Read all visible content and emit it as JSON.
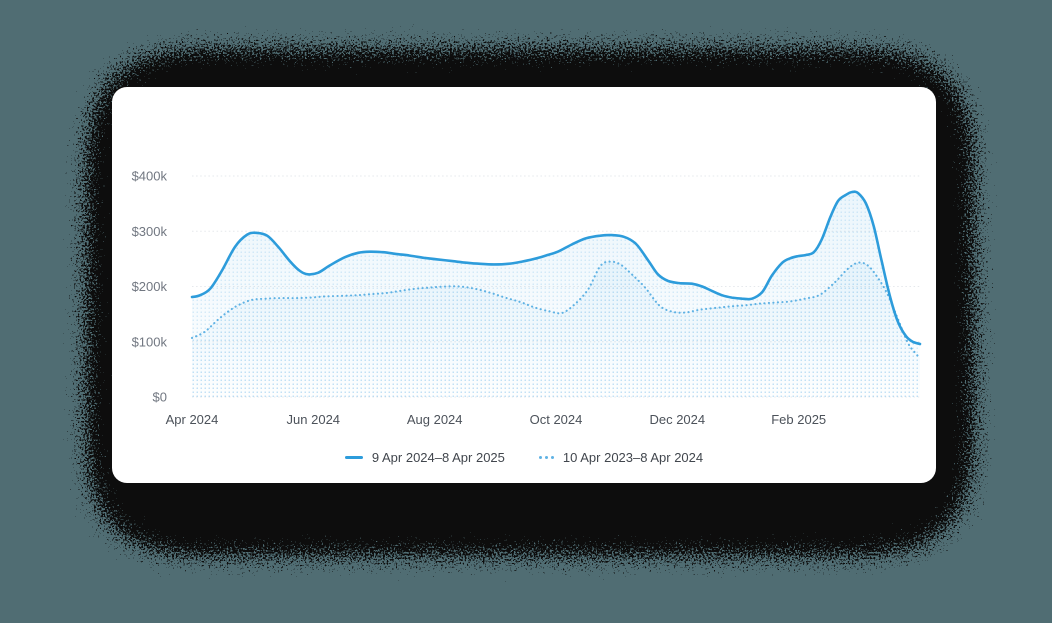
{
  "page": {
    "background_color": "#506d73",
    "shadow_color": "#0a0d0e",
    "card_color": "#ffffff"
  },
  "chart_data": {
    "type": "line",
    "title": "",
    "grid": "horizontal-dotted",
    "legend_position": "bottom-center",
    "colors": {
      "grid": "#e5e8ec",
      "y_label": "#717781",
      "x_label": "#4c525a",
      "legend_text": "#41464d",
      "area_base": "#2d9cdb",
      "stipple_dot": "#8ec7ec"
    },
    "x_axis": {
      "unit": "month",
      "range_months": [
        0,
        12
      ],
      "tick_positions_months": [
        0,
        2,
        4,
        6,
        8,
        10
      ],
      "tick_labels": [
        "Apr 2024",
        "Jun 2024",
        "Aug 2024",
        "Oct 2024",
        "Dec 2024",
        "Feb 2025"
      ]
    },
    "y_axis": {
      "unit": "USD",
      "range": [
        0,
        400
      ],
      "tick_values": [
        400,
        300,
        200,
        100,
        0
      ],
      "tick_labels": [
        "$400k",
        "$300k",
        "$200k",
        "$100k",
        "$0"
      ]
    },
    "series": [
      {
        "name": "9 Apr 2024–8 Apr 2025",
        "style": "solid",
        "color": "#2d9cdb",
        "points": [
          [
            0,
            181
          ],
          [
            0.13,
            184
          ],
          [
            0.3,
            196
          ],
          [
            0.49,
            228
          ],
          [
            0.71,
            272
          ],
          [
            0.91,
            294
          ],
          [
            1.07,
            297
          ],
          [
            1.24,
            292
          ],
          [
            1.42,
            272
          ],
          [
            1.62,
            245
          ],
          [
            1.78,
            228
          ],
          [
            1.91,
            222
          ],
          [
            2.08,
            225
          ],
          [
            2.27,
            238
          ],
          [
            2.52,
            253
          ],
          [
            2.74,
            261
          ],
          [
            2.93,
            263
          ],
          [
            3.15,
            262
          ],
          [
            3.36,
            259
          ],
          [
            3.59,
            256
          ],
          [
            3.82,
            252
          ],
          [
            4.05,
            249
          ],
          [
            4.29,
            246
          ],
          [
            4.52,
            243
          ],
          [
            4.75,
            241
          ],
          [
            4.98,
            240
          ],
          [
            5.21,
            241
          ],
          [
            5.44,
            245
          ],
          [
            5.64,
            250
          ],
          [
            5.83,
            256
          ],
          [
            6.03,
            263
          ],
          [
            6.26,
            276
          ],
          [
            6.49,
            287
          ],
          [
            6.73,
            292
          ],
          [
            6.92,
            293
          ],
          [
            7.12,
            290
          ],
          [
            7.32,
            277
          ],
          [
            7.52,
            247
          ],
          [
            7.68,
            222
          ],
          [
            7.85,
            210
          ],
          [
            8.04,
            206
          ],
          [
            8.24,
            205
          ],
          [
            8.41,
            200
          ],
          [
            8.57,
            192
          ],
          [
            8.74,
            184
          ],
          [
            8.9,
            180
          ],
          [
            9.07,
            178
          ],
          [
            9.23,
            178
          ],
          [
            9.4,
            190
          ],
          [
            9.56,
            220
          ],
          [
            9.73,
            243
          ],
          [
            9.86,
            251
          ],
          [
            9.99,
            255
          ],
          [
            10.12,
            257
          ],
          [
            10.25,
            262
          ],
          [
            10.38,
            285
          ],
          [
            10.52,
            325
          ],
          [
            10.65,
            355
          ],
          [
            10.78,
            366
          ],
          [
            10.88,
            371
          ],
          [
            10.98,
            369
          ],
          [
            11.11,
            350
          ],
          [
            11.24,
            308
          ],
          [
            11.37,
            245
          ],
          [
            11.51,
            180
          ],
          [
            11.64,
            135
          ],
          [
            11.77,
            110
          ],
          [
            11.88,
            100
          ],
          [
            12,
            96
          ]
        ]
      },
      {
        "name": "10 Apr 2023–8 Apr 2024",
        "style": "dotted",
        "color": "#5fb2e4",
        "points": [
          [
            0,
            107
          ],
          [
            0.21,
            118
          ],
          [
            0.46,
            143
          ],
          [
            0.71,
            163
          ],
          [
            0.96,
            175
          ],
          [
            1.2,
            178
          ],
          [
            1.45,
            179
          ],
          [
            1.7,
            179
          ],
          [
            1.95,
            180
          ],
          [
            2.19,
            182
          ],
          [
            2.44,
            183
          ],
          [
            2.69,
            184
          ],
          [
            2.93,
            186
          ],
          [
            3.18,
            188
          ],
          [
            3.43,
            192
          ],
          [
            3.68,
            196
          ],
          [
            3.92,
            198
          ],
          [
            4.17,
            200
          ],
          [
            4.42,
            200
          ],
          [
            4.66,
            196
          ],
          [
            4.91,
            189
          ],
          [
            5.16,
            180
          ],
          [
            5.41,
            172
          ],
          [
            5.65,
            162
          ],
          [
            5.9,
            155
          ],
          [
            6.1,
            152
          ],
          [
            6.31,
            168
          ],
          [
            6.53,
            195
          ],
          [
            6.73,
            237
          ],
          [
            6.89,
            245
          ],
          [
            7.06,
            240
          ],
          [
            7.25,
            222
          ],
          [
            7.47,
            198
          ],
          [
            7.71,
            165
          ],
          [
            7.93,
            154
          ],
          [
            8.14,
            153
          ],
          [
            8.37,
            158
          ],
          [
            8.62,
            161
          ],
          [
            8.87,
            164
          ],
          [
            9.12,
            166
          ],
          [
            9.36,
            169
          ],
          [
            9.61,
            171
          ],
          [
            9.86,
            173
          ],
          [
            10.1,
            178
          ],
          [
            10.35,
            185
          ],
          [
            10.6,
            208
          ],
          [
            10.81,
            232
          ],
          [
            10.98,
            243
          ],
          [
            11.14,
            238
          ],
          [
            11.31,
            215
          ],
          [
            11.47,
            185
          ],
          [
            11.64,
            140
          ],
          [
            11.8,
            98
          ],
          [
            11.92,
            80
          ],
          [
            12,
            70
          ]
        ]
      }
    ]
  },
  "legend": {
    "items": [
      {
        "label": "9 Apr 2024–8 Apr 2025",
        "marker": "solid-line"
      },
      {
        "label": "10 Apr 2023–8 Apr 2024",
        "marker": "dotted-line"
      }
    ]
  }
}
